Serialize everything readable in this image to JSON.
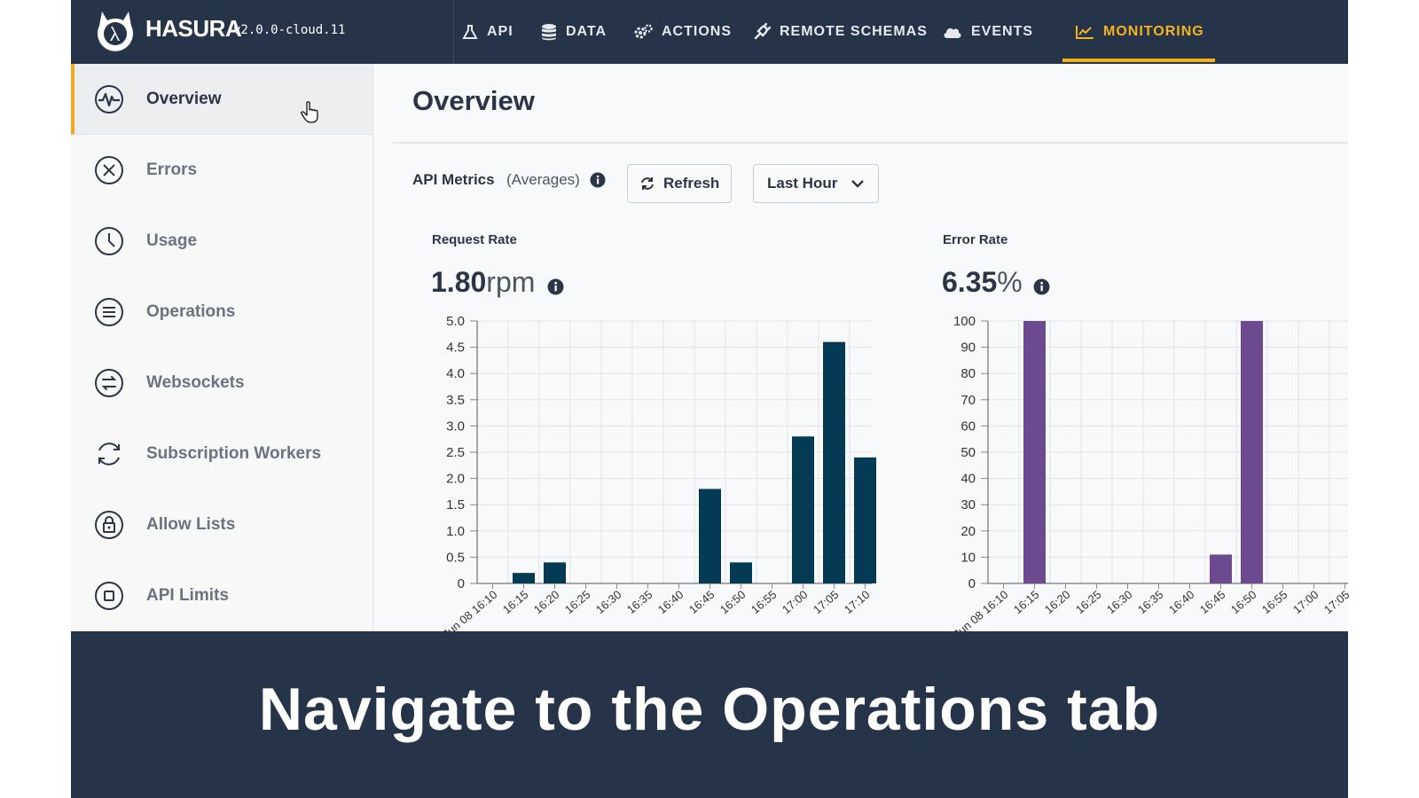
{
  "app": {
    "name": "HASURA",
    "version": "v2.0.0-cloud.11"
  },
  "nav": {
    "tabs": [
      {
        "label": "API",
        "icon": "flask-icon"
      },
      {
        "label": "DATA",
        "icon": "database-icon"
      },
      {
        "label": "ACTIONS",
        "icon": "gears-icon"
      },
      {
        "label": "REMOTE SCHEMAS",
        "icon": "plug-icon"
      },
      {
        "label": "EVENTS",
        "icon": "cloud-icon"
      },
      {
        "label": "MONITORING",
        "icon": "line-chart-icon"
      }
    ],
    "active": "MONITORING"
  },
  "sidebar": {
    "items": [
      {
        "label": "Overview",
        "icon": "pulse-icon"
      },
      {
        "label": "Errors",
        "icon": "x-circle-icon"
      },
      {
        "label": "Usage",
        "icon": "clock-icon"
      },
      {
        "label": "Operations",
        "icon": "list-circle-icon"
      },
      {
        "label": "Websockets",
        "icon": "exchange-icon"
      },
      {
        "label": "Subscription Workers",
        "icon": "refresh-circle-icon"
      },
      {
        "label": "Allow Lists",
        "icon": "lock-icon"
      },
      {
        "label": "API Limits",
        "icon": "stop-icon"
      }
    ],
    "active": "Overview"
  },
  "main": {
    "title": "Overview",
    "metrics_label": "API Metrics",
    "metrics_sub": "(Averages)",
    "refresh_label": "Refresh",
    "range_label": "Last Hour"
  },
  "caption": "Navigate to the Operations tab",
  "colors": {
    "nav_bg": "#26344a",
    "accent": "#f5b31b",
    "request_bar": "#053a55",
    "error_bar": "#6c4a8f"
  },
  "chart_data": [
    {
      "type": "bar",
      "title": "Request Rate",
      "stat_value": "1.80",
      "stat_unit": "rpm",
      "categories": [
        "Jun 08 16:10",
        "16:15",
        "16:20",
        "16:25",
        "16:30",
        "16:35",
        "16:40",
        "16:45",
        "16:50",
        "16:55",
        "17:00",
        "17:05",
        "17:10"
      ],
      "values": [
        0,
        0.2,
        0.4,
        0,
        0,
        0,
        0,
        1.8,
        0.4,
        0,
        2.8,
        4.6,
        2.4
      ],
      "ylim": [
        0,
        5
      ],
      "yticks": [
        "5.0",
        "4.5",
        "4.0",
        "3.5",
        "3.0",
        "2.5",
        "2.0",
        "1.5",
        "1.0",
        "0.5",
        "0"
      ],
      "grid": true
    },
    {
      "type": "bar",
      "title": "Error Rate",
      "stat_value": "6.35",
      "stat_unit": "%",
      "categories": [
        "Jun 08 16:10",
        "16:15",
        "16:20",
        "16:25",
        "16:30",
        "16:35",
        "16:40",
        "16:45",
        "16:50",
        "16:55",
        "17:00",
        "17:05"
      ],
      "values": [
        0,
        100,
        0,
        0,
        0,
        0,
        0,
        11,
        100,
        0,
        0,
        0
      ],
      "ylim": [
        0,
        100
      ],
      "yticks": [
        "100",
        "90",
        "80",
        "70",
        "60",
        "50",
        "40",
        "30",
        "20",
        "10",
        "0"
      ],
      "grid": true
    }
  ]
}
